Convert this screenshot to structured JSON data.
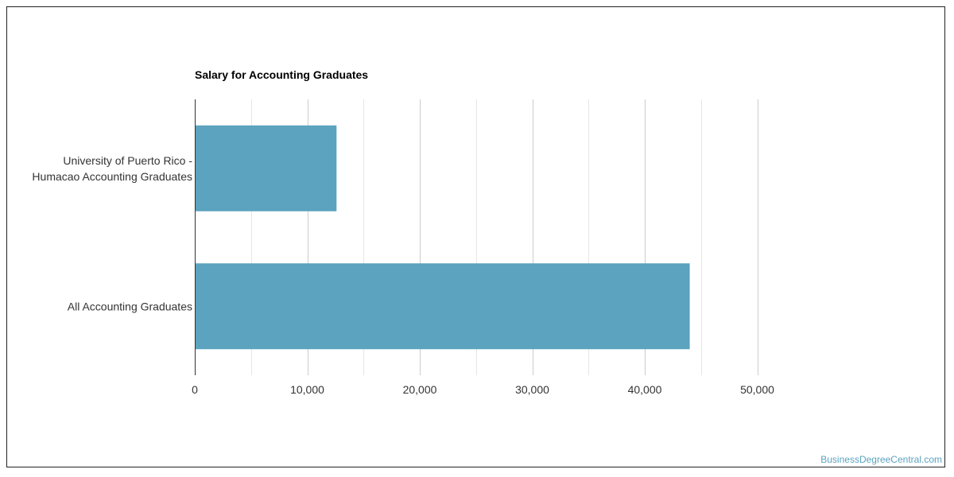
{
  "chart_data": {
    "type": "bar",
    "orientation": "horizontal",
    "title": "Salary for Accounting Graduates",
    "categories": [
      [
        "University of Puerto Rico -",
        "Humacao Accounting Graduates"
      ],
      [
        "All Accounting Graduates"
      ]
    ],
    "values": [
      12600,
      44000
    ],
    "xlim": [
      0,
      52000
    ],
    "x_ticks": [
      0,
      10000,
      20000,
      30000,
      40000,
      50000
    ],
    "x_tick_labels": [
      "0",
      "10,000",
      "20,000",
      "30,000",
      "40,000",
      "50,000"
    ],
    "grid": true,
    "bar_color": "#5ba3bf",
    "grid_color": "#cccccc"
  },
  "watermark": {
    "text": "BusinessDegreeCentral.com",
    "color": "#5ba3bf"
  }
}
